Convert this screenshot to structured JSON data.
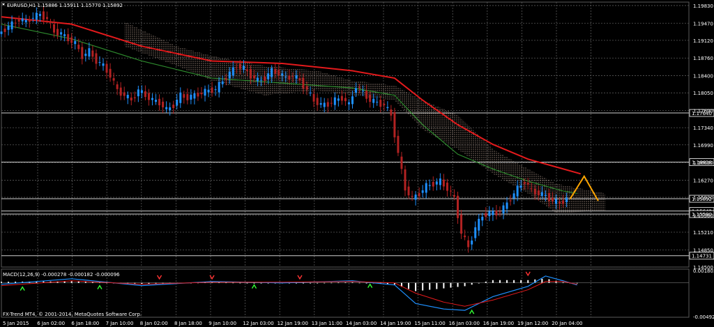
{
  "header": {
    "title": "EURUSD,H1  1.15886 1.15911 1.15770 1.15892"
  },
  "indicator": {
    "label": "MACD(12,26,9) -0.000278 -0.000182 -0.000096"
  },
  "footer": {
    "copyright": "FX-Trend MT4, © 2001-2014, MetaQuotes Software Corp."
  },
  "colors": {
    "background": "#000000",
    "grid": "#5a5a5a",
    "bull": "#1e90ff",
    "bear": "#b22222",
    "ma_fast": "#e41a1c",
    "ma_slow": "#2e8b2e",
    "cloud": "#f0d0c0",
    "forecast": "#ffa500",
    "macd_main": "#1e90ff",
    "macd_signal": "#e41a1c",
    "macd_hist": "#ffffff",
    "arrow_up": "#33ff33",
    "arrow_down": "#ff3333"
  },
  "chart_data": [
    {
      "type": "candlestick",
      "symbol": "EURUSD",
      "timeframe": "H1",
      "ohlc_last": {
        "open": 1.15886,
        "high": 1.15911,
        "low": 1.1577,
        "close": 1.15892
      },
      "ylim": [
        1.145,
        1.199
      ],
      "y_ticks": [
        "1.19830",
        "1.19470",
        "1.19120",
        "1.18760",
        "1.18400",
        "1.18050",
        "1.17690",
        "1.17340",
        "1.16990",
        "1.16630",
        "1.16270",
        "1.15920",
        "1.15560",
        "1.15210",
        "1.14850",
        "1.14500"
      ],
      "x_ticks": [
        "5 Jan 2015",
        "6 Jan 02:00",
        "6 Jan 18:00",
        "7 Jan 10:00",
        "8 Jan 02:00",
        "8 Jan 18:00",
        "9 Jan 10:00",
        "12 Jan 03:00",
        "12 Jan 19:00",
        "13 Jan 11:00",
        "14 Jan 03:00",
        "14 Jan 19:00",
        "15 Jan 11:00",
        "16 Jan 03:00",
        "16 Jan 19:00",
        "19 Jan 12:00",
        "20 Jan 04:00"
      ],
      "levels": [
        {
          "value": 1.1764,
          "label": "1.17640"
        },
        {
          "value": 1.16638,
          "label": "1.16638"
        },
        {
          "value": 1.15892,
          "label": "1.15892"
        },
        {
          "value": 1.15642,
          "label": "1.15642"
        },
        {
          "value": 1.1558,
          "label": "1.15580"
        },
        {
          "value": 1.14731,
          "label": "1.14731"
        }
      ],
      "price_path": [
        [
          0,
          1.1925
        ],
        [
          2,
          1.1935
        ],
        [
          4,
          1.1945
        ],
        [
          6,
          1.1955
        ],
        [
          8,
          1.195
        ],
        [
          10,
          1.196
        ],
        [
          12,
          1.1965
        ],
        [
          14,
          1.1955
        ],
        [
          16,
          1.193
        ],
        [
          18,
          1.1925
        ],
        [
          20,
          1.1915
        ],
        [
          22,
          1.1905
        ],
        [
          24,
          1.188
        ],
        [
          26,
          1.189
        ],
        [
          28,
          1.187
        ],
        [
          30,
          1.186
        ],
        [
          32,
          1.184
        ],
        [
          34,
          1.181
        ],
        [
          36,
          1.18
        ],
        [
          38,
          1.179
        ],
        [
          40,
          1.181
        ],
        [
          42,
          1.18
        ],
        [
          44,
          1.179
        ],
        [
          46,
          1.1785
        ],
        [
          48,
          1.177
        ],
        [
          50,
          1.178
        ],
        [
          52,
          1.18
        ],
        [
          54,
          1.1795
        ],
        [
          56,
          1.18
        ],
        [
          58,
          1.1805
        ],
        [
          60,
          1.181
        ],
        [
          62,
          1.1812
        ],
        [
          64,
          1.183
        ],
        [
          66,
          1.1845
        ],
        [
          68,
          1.186
        ],
        [
          70,
          1.1855
        ],
        [
          72,
          1.184
        ],
        [
          74,
          1.183
        ],
        [
          76,
          1.1835
        ],
        [
          78,
          1.185
        ],
        [
          80,
          1.1845
        ],
        [
          82,
          1.1835
        ],
        [
          84,
          1.184
        ],
        [
          86,
          1.183
        ],
        [
          88,
          1.181
        ],
        [
          90,
          1.179
        ],
        [
          92,
          1.178
        ],
        [
          94,
          1.1782
        ],
        [
          96,
          1.179
        ],
        [
          98,
          1.1795
        ],
        [
          100,
          1.178
        ],
        [
          102,
          1.182
        ],
        [
          104,
          1.1805
        ],
        [
          106,
          1.179
        ],
        [
          108,
          1.1785
        ],
        [
          110,
          1.178
        ],
        [
          112,
          1.176
        ],
        [
          114,
          1.168
        ],
        [
          116,
          1.161
        ],
        [
          118,
          1.159
        ],
        [
          120,
          1.16
        ],
        [
          122,
          1.1615
        ],
        [
          124,
          1.162
        ],
        [
          126,
          1.1625
        ],
        [
          128,
          1.161
        ],
        [
          130,
          1.159
        ],
        [
          132,
          1.152
        ],
        [
          134,
          1.149
        ],
        [
          136,
          1.153
        ],
        [
          138,
          1.1555
        ],
        [
          140,
          1.156
        ],
        [
          142,
          1.156
        ],
        [
          144,
          1.157
        ],
        [
          146,
          1.159
        ],
        [
          148,
          1.161
        ],
        [
          150,
          1.1625
        ],
        [
          152,
          1.1605
        ],
        [
          154,
          1.16
        ],
        [
          156,
          1.1595
        ],
        [
          158,
          1.1585
        ],
        [
          160,
          1.158
        ],
        [
          162,
          1.1589
        ]
      ],
      "ma_fast": [
        [
          0,
          1.196
        ],
        [
          20,
          1.1945
        ],
        [
          40,
          1.19
        ],
        [
          60,
          1.187
        ],
        [
          80,
          1.1865
        ],
        [
          100,
          1.185
        ],
        [
          112,
          1.1835
        ],
        [
          120,
          1.179
        ],
        [
          130,
          1.174
        ],
        [
          140,
          1.17
        ],
        [
          150,
          1.167
        ],
        [
          160,
          1.165
        ],
        [
          165,
          1.164
        ]
      ],
      "ma_slow": [
        [
          0,
          1.1945
        ],
        [
          20,
          1.1915
        ],
        [
          40,
          1.187
        ],
        [
          60,
          1.1835
        ],
        [
          80,
          1.1825
        ],
        [
          100,
          1.1815
        ],
        [
          112,
          1.18
        ],
        [
          120,
          1.174
        ],
        [
          130,
          1.168
        ],
        [
          140,
          1.165
        ],
        [
          150,
          1.1625
        ],
        [
          160,
          1.1605
        ],
        [
          164,
          1.16
        ]
      ],
      "forecast_path": [
        [
          162,
          1.1589
        ],
        [
          166,
          1.1635
        ],
        [
          170,
          1.1585
        ]
      ],
      "cloud_upper": [
        [
          35,
          1.195
        ],
        [
          50,
          1.19
        ],
        [
          60,
          1.188
        ],
        [
          75,
          1.186
        ],
        [
          90,
          1.185
        ],
        [
          100,
          1.183
        ],
        [
          112,
          1.182
        ],
        [
          120,
          1.179
        ],
        [
          130,
          1.176
        ],
        [
          140,
          1.169
        ],
        [
          150,
          1.165
        ],
        [
          158,
          1.162
        ],
        [
          172,
          1.16
        ]
      ],
      "cloud_lower": [
        [
          35,
          1.19
        ],
        [
          50,
          1.186
        ],
        [
          60,
          1.183
        ],
        [
          75,
          1.18
        ],
        [
          90,
          1.181
        ],
        [
          100,
          1.18
        ],
        [
          112,
          1.179
        ],
        [
          120,
          1.173
        ],
        [
          130,
          1.169
        ],
        [
          140,
          1.164
        ],
        [
          150,
          1.16
        ],
        [
          158,
          1.156
        ],
        [
          172,
          1.1565
        ]
      ]
    },
    {
      "type": "macd",
      "name": "MACD(12,26,9)",
      "main": -0.000278,
      "signal": -0.000182,
      "hist": -9.6e-05,
      "ylim": [
        -0.005,
        0.002
      ],
      "y_ticks": [
        "0.001803",
        "-0.004923"
      ],
      "macd_path": [
        [
          0,
          -0.0002
        ],
        [
          20,
          0.0006
        ],
        [
          40,
          -0.0004
        ],
        [
          60,
          0.0002
        ],
        [
          80,
          0.0
        ],
        [
          100,
          0.0003
        ],
        [
          112,
          -0.0003
        ],
        [
          118,
          -0.003
        ],
        [
          126,
          -0.0038
        ],
        [
          132,
          -0.004
        ],
        [
          140,
          -0.002
        ],
        [
          150,
          -0.0005
        ],
        [
          155,
          0.001
        ],
        [
          160,
          0.0003
        ],
        [
          164,
          -0.0003
        ]
      ],
      "signal_path": [
        [
          0,
          -0.0004
        ],
        [
          20,
          0.0003
        ],
        [
          40,
          -0.0002
        ],
        [
          60,
          0.0001
        ],
        [
          80,
          0.0001
        ],
        [
          100,
          0.0002
        ],
        [
          112,
          0.0
        ],
        [
          118,
          -0.0015
        ],
        [
          126,
          -0.0028
        ],
        [
          132,
          -0.0034
        ],
        [
          140,
          -0.0025
        ],
        [
          150,
          -0.001
        ],
        [
          155,
          0.0002
        ],
        [
          160,
          0.0002
        ],
        [
          164,
          -0.0002
        ]
      ]
    }
  ]
}
